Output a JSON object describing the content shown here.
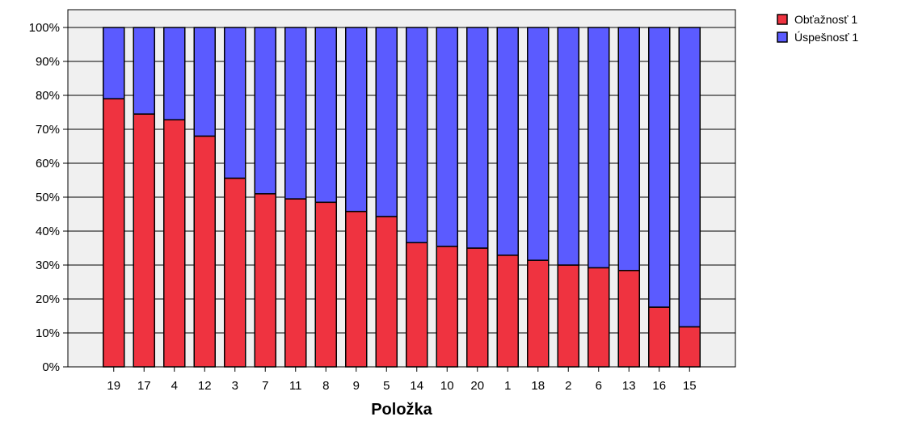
{
  "chart_data": {
    "type": "bar",
    "stacked": true,
    "normalized": true,
    "xlabel": "Položka",
    "ylabel": "",
    "ylim": [
      0,
      100
    ],
    "yticks": [
      "0%",
      "10%",
      "20%",
      "30%",
      "40%",
      "50%",
      "60%",
      "70%",
      "80%",
      "90%",
      "100%"
    ],
    "grid": true,
    "legend_position": "top-right",
    "categories": [
      "19",
      "17",
      "4",
      "12",
      "3",
      "7",
      "11",
      "8",
      "9",
      "5",
      "14",
      "10",
      "20",
      "1",
      "18",
      "2",
      "6",
      "13",
      "16",
      "15"
    ],
    "series": [
      {
        "name": "Obťažnosť 1",
        "color": "#ef3340",
        "values": [
          79,
          74.5,
          72.8,
          68,
          55.6,
          51,
          49.5,
          48.5,
          45.8,
          44.3,
          36.6,
          35.5,
          35,
          32.9,
          31.4,
          30,
          29.2,
          28.4,
          17.6,
          11.8
        ]
      },
      {
        "name": "Úspešnosť 1",
        "color": "#5b5bff",
        "values": [
          21,
          25.5,
          27.2,
          32,
          44.4,
          49,
          50.5,
          51.5,
          54.2,
          55.7,
          63.4,
          64.5,
          65,
          67.1,
          68.6,
          70,
          70.8,
          71.6,
          82.4,
          88.2
        ]
      }
    ]
  }
}
